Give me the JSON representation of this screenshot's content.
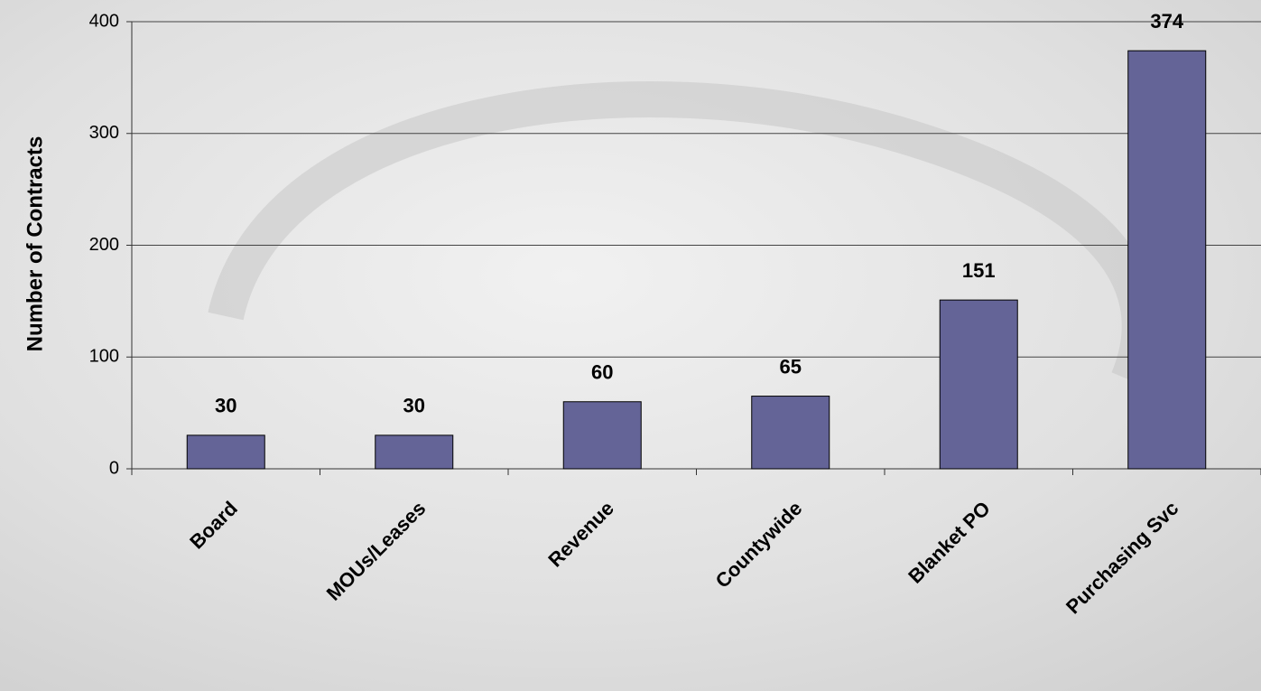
{
  "chart_data": {
    "type": "bar",
    "y_label": "Number of Contracts",
    "categories": [
      "Board",
      "MOUs/Leases",
      "Revenue",
      "Countywide",
      "Blanket PO",
      "Purchasing Svc"
    ],
    "values": [
      30,
      30,
      60,
      65,
      151,
      374
    ],
    "color": "#646497",
    "ylim": [
      0,
      400
    ],
    "yticks": [
      0,
      100,
      200,
      300,
      400
    ],
    "grid": true
  }
}
